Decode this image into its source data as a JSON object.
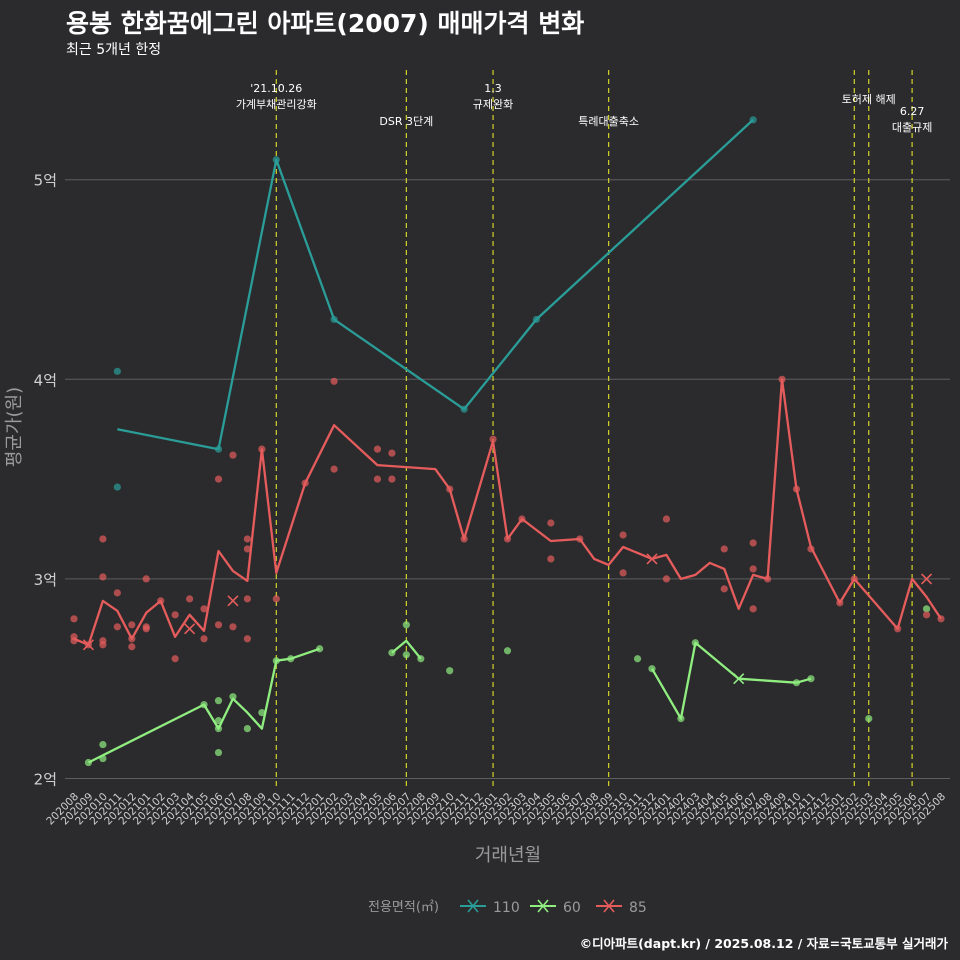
{
  "title": "용봉 한화꿈에그린 아파트(2007) 매매가격 변화",
  "subtitle": "최근 5개년 한정",
  "caption": "©디아파트(dapt.kr) / 2025.08.12 / 자료=국토교통부 실거래가",
  "chart_data": {
    "type": "line",
    "xlabel": "거래년월",
    "ylabel": "평균가(원)",
    "grid": true,
    "ylim": [
      1.95,
      5.5
    ],
    "y_ticks": [
      {
        "v": 2,
        "label": "2억"
      },
      {
        "v": 3,
        "label": "3억"
      },
      {
        "v": 4,
        "label": "4억"
      },
      {
        "v": 5,
        "label": "5억"
      }
    ],
    "x_categories": [
      "202008",
      "202009",
      "202010",
      "202011",
      "202012",
      "202101",
      "202102",
      "202103",
      "202104",
      "202105",
      "202106",
      "202107",
      "202108",
      "202109",
      "202110",
      "202111",
      "202112",
      "202201",
      "202202",
      "202203",
      "202204",
      "202205",
      "202206",
      "202207",
      "202208",
      "202209",
      "202210",
      "202211",
      "202212",
      "202301",
      "202302",
      "202303",
      "202304",
      "202305",
      "202306",
      "202307",
      "202308",
      "202309",
      "202310",
      "202311",
      "202312",
      "202401",
      "202402",
      "202403",
      "202404",
      "202405",
      "202406",
      "202407",
      "202408",
      "202409",
      "202410",
      "202411",
      "202412",
      "202501",
      "202502",
      "202503",
      "202504",
      "202505",
      "202506",
      "202507",
      "202508"
    ],
    "legend": {
      "title": "전용면적(㎡)",
      "position": "bottom"
    },
    "series": [
      {
        "name": "110",
        "color": "#2a9d98",
        "line": [
          [
            "202011",
            3.75
          ],
          [
            "202106",
            3.65
          ],
          [
            "202110",
            5.1
          ],
          [
            "202202",
            4.3
          ],
          [
            "202211",
            3.85
          ],
          [
            "202304",
            4.3
          ],
          [
            "202407",
            5.3
          ]
        ],
        "points": [
          [
            "202011",
            4.04
          ],
          [
            "202011",
            3.46
          ],
          [
            "202106",
            3.65
          ],
          [
            "202110",
            5.1
          ],
          [
            "202202",
            4.3
          ],
          [
            "202211",
            3.85
          ],
          [
            "202304",
            4.3
          ],
          [
            "202407",
            5.3
          ]
        ],
        "crosses": []
      },
      {
        "name": "60",
        "color": "#90ee80",
        "line": [
          [
            "202009",
            2.08
          ],
          [
            "202105",
            2.37
          ],
          [
            "202106",
            2.25
          ],
          [
            "202107",
            2.4
          ],
          [
            "202108",
            2.33
          ],
          [
            "202109",
            2.25
          ],
          [
            "202110",
            2.59
          ],
          [
            "202111",
            2.6
          ],
          [
            "202201",
            2.65
          ]
        ],
        "line2": [
          [
            "202206",
            2.63
          ],
          [
            "202207",
            2.69
          ],
          [
            "202208",
            2.6
          ]
        ],
        "line3": [
          [
            "202312",
            2.55
          ],
          [
            "202402",
            2.3
          ],
          [
            "202403",
            2.68
          ],
          [
            "202406",
            2.5
          ],
          [
            "202410",
            2.48
          ],
          [
            "202411",
            2.5
          ]
        ],
        "points": [
          [
            "202009",
            2.08
          ],
          [
            "202010",
            2.1
          ],
          [
            "202010",
            2.17
          ],
          [
            "202105",
            2.37
          ],
          [
            "202106",
            2.13
          ],
          [
            "202106",
            2.25
          ],
          [
            "202106",
            2.29
          ],
          [
            "202106",
            2.39
          ],
          [
            "202107",
            2.41
          ],
          [
            "202108",
            2.25
          ],
          [
            "202109",
            2.33
          ],
          [
            "202110",
            2.59
          ],
          [
            "202111",
            2.6
          ],
          [
            "202201",
            2.65
          ],
          [
            "202206",
            2.63
          ],
          [
            "202207",
            2.62
          ],
          [
            "202207",
            2.77
          ],
          [
            "202208",
            2.6
          ],
          [
            "202210",
            2.54
          ],
          [
            "202302",
            2.64
          ],
          [
            "202311",
            2.6
          ],
          [
            "202312",
            2.55
          ],
          [
            "202402",
            2.3
          ],
          [
            "202403",
            2.68
          ],
          [
            "202410",
            2.48
          ],
          [
            "202411",
            2.5
          ],
          [
            "202503",
            2.3
          ],
          [
            "202507",
            2.85
          ]
        ],
        "crosses": [
          [
            "202406",
            2.5
          ]
        ]
      },
      {
        "name": "85",
        "color": "#e65c5c",
        "line": [
          [
            "202008",
            2.7
          ],
          [
            "202009",
            2.67
          ],
          [
            "202010",
            2.89
          ],
          [
            "202011",
            2.84
          ],
          [
            "202012",
            2.7
          ],
          [
            "202101",
            2.83
          ],
          [
            "202102",
            2.89
          ],
          [
            "202103",
            2.71
          ],
          [
            "202104",
            2.82
          ],
          [
            "202105",
            2.74
          ],
          [
            "202106",
            3.14
          ],
          [
            "202107",
            3.04
          ],
          [
            "202108",
            2.99
          ],
          [
            "202109",
            3.65
          ],
          [
            "202110",
            3.03
          ],
          [
            "202112",
            3.48
          ],
          [
            "202202",
            3.77
          ],
          [
            "202205",
            3.57
          ],
          [
            "202209",
            3.55
          ],
          [
            "202210",
            3.45
          ],
          [
            "202211",
            3.2
          ],
          [
            "202301",
            3.69
          ],
          [
            "202302",
            3.2
          ],
          [
            "202303",
            3.3
          ],
          [
            "202305",
            3.19
          ],
          [
            "202307",
            3.2
          ],
          [
            "202308",
            3.1
          ],
          [
            "202309",
            3.07
          ],
          [
            "202310",
            3.16
          ],
          [
            "202312",
            3.1
          ],
          [
            "202401",
            3.12
          ],
          [
            "202402",
            3.0
          ],
          [
            "202403",
            3.02
          ],
          [
            "202404",
            3.08
          ],
          [
            "202405",
            3.05
          ],
          [
            "202406",
            2.85
          ],
          [
            "202407",
            3.02
          ],
          [
            "202408",
            3.0
          ],
          [
            "202409",
            4.0
          ],
          [
            "202410",
            3.45
          ],
          [
            "202411",
            3.16
          ],
          [
            "202501",
            2.88
          ],
          [
            "202502",
            3.0
          ],
          [
            "202505",
            2.75
          ],
          [
            "202506",
            3.0
          ],
          [
            "202507",
            2.91
          ],
          [
            "202508",
            2.8
          ]
        ],
        "points": [
          [
            "202008",
            2.8
          ],
          [
            "202008",
            2.71
          ],
          [
            "202008",
            2.69
          ],
          [
            "202009",
            2.67
          ],
          [
            "202010",
            3.2
          ],
          [
            "202010",
            3.01
          ],
          [
            "202010",
            2.69
          ],
          [
            "202010",
            2.67
          ],
          [
            "202011",
            2.93
          ],
          [
            "202011",
            2.76
          ],
          [
            "202012",
            2.7
          ],
          [
            "202012",
            2.77
          ],
          [
            "202012",
            2.66
          ],
          [
            "202101",
            3.0
          ],
          [
            "202101",
            2.76
          ],
          [
            "202101",
            2.75
          ],
          [
            "202102",
            2.89
          ],
          [
            "202103",
            2.82
          ],
          [
            "202103",
            2.6
          ],
          [
            "202104",
            2.9
          ],
          [
            "202105",
            2.85
          ],
          [
            "202105",
            2.7
          ],
          [
            "202106",
            3.5
          ],
          [
            "202106",
            2.77
          ],
          [
            "202107",
            3.62
          ],
          [
            "202107",
            2.76
          ],
          [
            "202108",
            3.2
          ],
          [
            "202108",
            3.15
          ],
          [
            "202108",
            2.9
          ],
          [
            "202108",
            2.7
          ],
          [
            "202109",
            3.65
          ],
          [
            "202110",
            2.9
          ],
          [
            "202112",
            3.48
          ],
          [
            "202202",
            3.99
          ],
          [
            "202202",
            3.55
          ],
          [
            "202205",
            3.65
          ],
          [
            "202205",
            3.5
          ],
          [
            "202206",
            3.63
          ],
          [
            "202206",
            3.5
          ],
          [
            "202210",
            3.45
          ],
          [
            "202211",
            3.2
          ],
          [
            "202301",
            3.7
          ],
          [
            "202302",
            3.2
          ],
          [
            "202303",
            3.3
          ],
          [
            "202305",
            3.28
          ],
          [
            "202305",
            3.1
          ],
          [
            "202307",
            3.2
          ],
          [
            "202310",
            3.22
          ],
          [
            "202310",
            3.03
          ],
          [
            "202401",
            3.3
          ],
          [
            "202401",
            3.0
          ],
          [
            "202405",
            3.15
          ],
          [
            "202405",
            2.95
          ],
          [
            "202407",
            3.18
          ],
          [
            "202407",
            3.05
          ],
          [
            "202407",
            2.85
          ],
          [
            "202408",
            3.0
          ],
          [
            "202409",
            4.0
          ],
          [
            "202410",
            3.45
          ],
          [
            "202411",
            3.15
          ],
          [
            "202501",
            2.88
          ],
          [
            "202502",
            3.0
          ],
          [
            "202505",
            2.75
          ],
          [
            "202507",
            2.82
          ],
          [
            "202508",
            2.8
          ]
        ],
        "crosses": [
          [
            "202009",
            2.67
          ],
          [
            "202104",
            2.75
          ],
          [
            "202107",
            2.89
          ],
          [
            "202312",
            3.1
          ],
          [
            "202507",
            3.0
          ]
        ]
      }
    ],
    "events": [
      {
        "x": "202110",
        "label": [
          "'21.10.26",
          "가계부채관리강화"
        ],
        "row": 0
      },
      {
        "x": "202207",
        "label": [
          "DSR 3단계"
        ],
        "row": 1
      },
      {
        "x": "202301",
        "label": [
          "1.3",
          "규제완화"
        ],
        "row": 0
      },
      {
        "x": "202309",
        "label": [
          "특례대출축소"
        ],
        "row": 1
      },
      {
        "x": "202502",
        "label": [],
        "row": 0
      },
      {
        "x": "202503",
        "label": [
          "토허제 해제"
        ],
        "row": 0
      },
      {
        "x": "202506",
        "label": [
          "6.27",
          "대출규제"
        ],
        "row": 2
      }
    ]
  }
}
